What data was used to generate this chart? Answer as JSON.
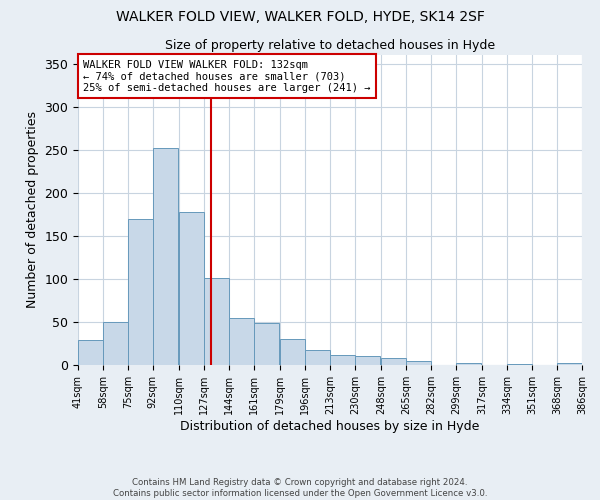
{
  "title": "WALKER FOLD VIEW, WALKER FOLD, HYDE, SK14 2SF",
  "subtitle": "Size of property relative to detached houses in Hyde",
  "xlabel": "Distribution of detached houses by size in Hyde",
  "ylabel": "Number of detached properties",
  "bar_color": "#c8d8e8",
  "bar_edge_color": "#6699bb",
  "vline_x": 132,
  "vline_color": "#cc0000",
  "bins_left": [
    41,
    58,
    75,
    92,
    110,
    127,
    144,
    161,
    179,
    196,
    213,
    230,
    248,
    265,
    282,
    299,
    317,
    334,
    351,
    368
  ],
  "bin_width": 17,
  "counts": [
    29,
    50,
    170,
    252,
    178,
    101,
    55,
    49,
    30,
    18,
    12,
    11,
    8,
    5,
    0,
    2,
    0,
    1,
    0,
    2
  ],
  "x_tick_labels": [
    "41sqm",
    "58sqm",
    "75sqm",
    "92sqm",
    "110sqm",
    "127sqm",
    "144sqm",
    "161sqm",
    "179sqm",
    "196sqm",
    "213sqm",
    "230sqm",
    "248sqm",
    "265sqm",
    "282sqm",
    "299sqm",
    "317sqm",
    "334sqm",
    "351sqm",
    "368sqm",
    "386sqm"
  ],
  "ylim": [
    0,
    360
  ],
  "yticks": [
    0,
    50,
    100,
    150,
    200,
    250,
    300,
    350
  ],
  "annotation_title": "WALKER FOLD VIEW WALKER FOLD: 132sqm",
  "annotation_line1": "← 74% of detached houses are smaller (703)",
  "annotation_line2": "25% of semi-detached houses are larger (241) →",
  "footer1": "Contains HM Land Registry data © Crown copyright and database right 2024.",
  "footer2": "Contains public sector information licensed under the Open Government Licence v3.0.",
  "bg_color": "#e8eef4",
  "plot_bg_color": "#ffffff",
  "grid_color": "#c8d4e0"
}
